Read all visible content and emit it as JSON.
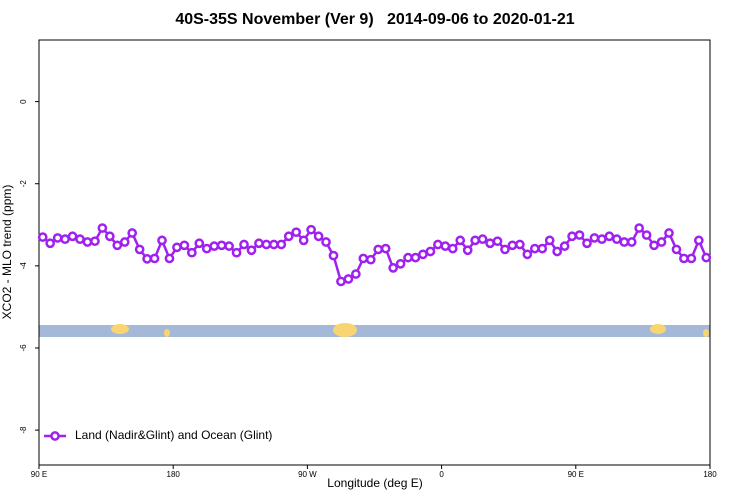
{
  "chart_data": {
    "type": "line",
    "title": "40S-35S November (Ver 9)   2014-09-06 to 2020-01-21",
    "x_label": "Longitude (deg E)",
    "y_label": "XCO2 - MLO trend (ppm)",
    "xlim": [
      90,
      540
    ],
    "ylim": [
      -8.85,
      1.5
    ],
    "xticks": [
      {
        "value": 90,
        "label": "90 E"
      },
      {
        "value": 180,
        "label": "180"
      },
      {
        "value": 270,
        "label": "90 W"
      },
      {
        "value": 360,
        "label": "0"
      },
      {
        "value": 450,
        "label": "90 E"
      },
      {
        "value": 540,
        "label": "180"
      }
    ],
    "yticks": [
      0,
      -2,
      -4,
      -6,
      -8
    ],
    "legend": "bottom-left",
    "x": [
      92.5,
      97.5,
      102.5,
      107.5,
      112.5,
      117.5,
      122.5,
      127.5,
      132.5,
      137.5,
      142.5,
      147.5,
      152.5,
      157.5,
      162.5,
      167.5,
      172.5,
      177.5,
      182.5,
      187.5,
      192.5,
      197.5,
      202.5,
      207.5,
      212.5,
      217.5,
      222.5,
      227.5,
      232.5,
      237.5,
      242.5,
      247.5,
      252.5,
      257.5,
      262.5,
      267.5,
      272.5,
      277.5,
      282.5,
      287.5,
      292.5,
      297.5,
      302.5,
      307.5,
      312.5,
      317.5,
      322.5,
      327.5,
      332.5,
      337.5,
      342.5,
      347.5,
      352.5,
      357.5,
      362.5,
      367.5,
      372.5,
      377.5,
      382.5,
      387.5,
      392.5,
      397.5,
      402.5,
      407.5,
      412.5,
      417.5,
      422.5,
      427.5,
      432.5,
      437.5,
      442.5,
      447.5,
      452.5,
      457.5,
      462.5,
      467.5,
      472.5,
      477.5,
      482.5,
      487.5,
      492.5,
      497.5,
      502.5,
      507.5,
      512.5,
      517.5,
      522.5,
      527.5,
      532.5,
      537.5
    ],
    "series": [
      {
        "name": "Land (Nadir&Glint) and Ocean (Glint)",
        "color": "#a020f0",
        "values": [
          -3.3,
          -3.45,
          -3.32,
          -3.35,
          -3.28,
          -3.35,
          -3.42,
          -3.4,
          -3.08,
          -3.28,
          -3.5,
          -3.42,
          -3.2,
          -3.6,
          -3.83,
          -3.82,
          -3.38,
          -3.82,
          -3.55,
          -3.5,
          -3.68,
          -3.45,
          -3.58,
          -3.52,
          -3.5,
          -3.52,
          -3.68,
          -3.48,
          -3.62,
          -3.45,
          -3.48,
          -3.48,
          -3.48,
          -3.28,
          -3.18,
          -3.38,
          -3.12,
          -3.28,
          -3.42,
          -3.75,
          -4.38,
          -4.32,
          -4.2,
          -3.82,
          -3.85,
          -3.6,
          -3.58,
          -4.05,
          -3.95,
          -3.8,
          -3.8,
          -3.72,
          -3.65,
          -3.48,
          -3.52,
          -3.58,
          -3.38,
          -3.62,
          -3.38,
          -3.35,
          -3.45,
          -3.4,
          -3.6,
          -3.5,
          -3.48,
          -3.72,
          -3.58,
          -3.58,
          -3.38,
          -3.65,
          -3.52,
          -3.28,
          -3.25,
          -3.45,
          -3.32,
          -3.35,
          -3.28,
          -3.35,
          -3.42,
          -3.42,
          -3.08,
          -3.25,
          -3.5,
          -3.42,
          -3.2,
          -3.6,
          -3.82,
          -3.82,
          -3.38,
          -3.8
        ]
      }
    ]
  }
}
